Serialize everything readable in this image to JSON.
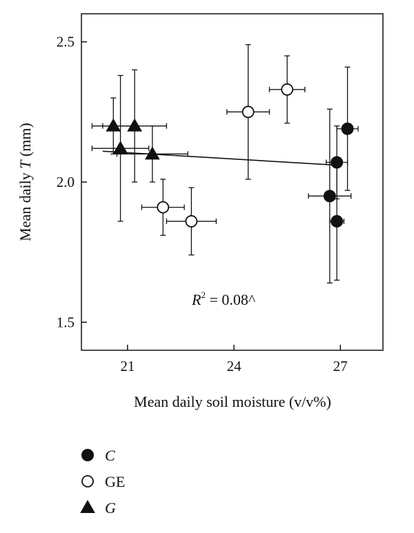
{
  "chart_data": {
    "type": "scatter",
    "xlabel": "Mean daily soil moisture (v/v%)",
    "ylabel_prefix": "Mean daily ",
    "ylabel_var": "T",
    "ylabel_suffix": " (mm)",
    "xlim": [
      19.7,
      28.2
    ],
    "ylim": [
      1.4,
      2.6
    ],
    "xticks": [
      21,
      24,
      27
    ],
    "yticks": [
      1.5,
      2.0,
      2.5
    ],
    "xtick_labels": [
      "21",
      "24",
      "27"
    ],
    "ytick_labels": [
      "1.5",
      "2.0",
      "2.5"
    ],
    "annotation": {
      "var": "R",
      "sup": "2",
      "value": " = 0.08^"
    },
    "trendline": {
      "x": [
        20.3,
        26.9
      ],
      "y": [
        2.11,
        2.06
      ]
    },
    "series": [
      {
        "name": "C",
        "marker": "filled-circle",
        "points": [
          {
            "x": 27.2,
            "y": 2.19,
            "xerr": 0.3,
            "yerr": 0.22
          },
          {
            "x": 26.9,
            "y": 2.07,
            "xerr": 0.3,
            "yerr": 0.13
          },
          {
            "x": 26.7,
            "y": 1.95,
            "xerr": 0.6,
            "yerr": 0.31
          },
          {
            "x": 26.9,
            "y": 1.86,
            "xerr": 0.2,
            "yerr": 0.21
          }
        ]
      },
      {
        "name": "GE",
        "marker": "open-circle",
        "points": [
          {
            "x": 25.5,
            "y": 2.33,
            "xerr": 0.5,
            "yerr": 0.12
          },
          {
            "x": 24.4,
            "y": 2.25,
            "xerr": 0.6,
            "yerr": 0.24
          },
          {
            "x": 22.0,
            "y": 1.91,
            "xerr": 0.6,
            "yerr": 0.1
          },
          {
            "x": 22.8,
            "y": 1.86,
            "xerr": 0.7,
            "yerr": 0.12
          }
        ]
      },
      {
        "name": "G",
        "marker": "filled-triangle",
        "points": [
          {
            "x": 20.6,
            "y": 2.2,
            "xerr": 0.6,
            "yerr": 0.1
          },
          {
            "x": 21.2,
            "y": 2.2,
            "xerr": 0.9,
            "yerr": 0.2
          },
          {
            "x": 20.8,
            "y": 2.12,
            "xerr": 0.8,
            "yerr": 0.26
          },
          {
            "x": 21.7,
            "y": 2.1,
            "xerr": 1.0,
            "yerr": 0.1
          }
        ]
      }
    ],
    "legend": {
      "placement": "bottom-left",
      "entries": [
        {
          "marker": "filled-circle",
          "label": "C",
          "italic": true
        },
        {
          "marker": "open-circle",
          "label": "GE",
          "italic": false
        },
        {
          "marker": "filled-triangle",
          "label": "G",
          "italic": true
        }
      ]
    }
  }
}
